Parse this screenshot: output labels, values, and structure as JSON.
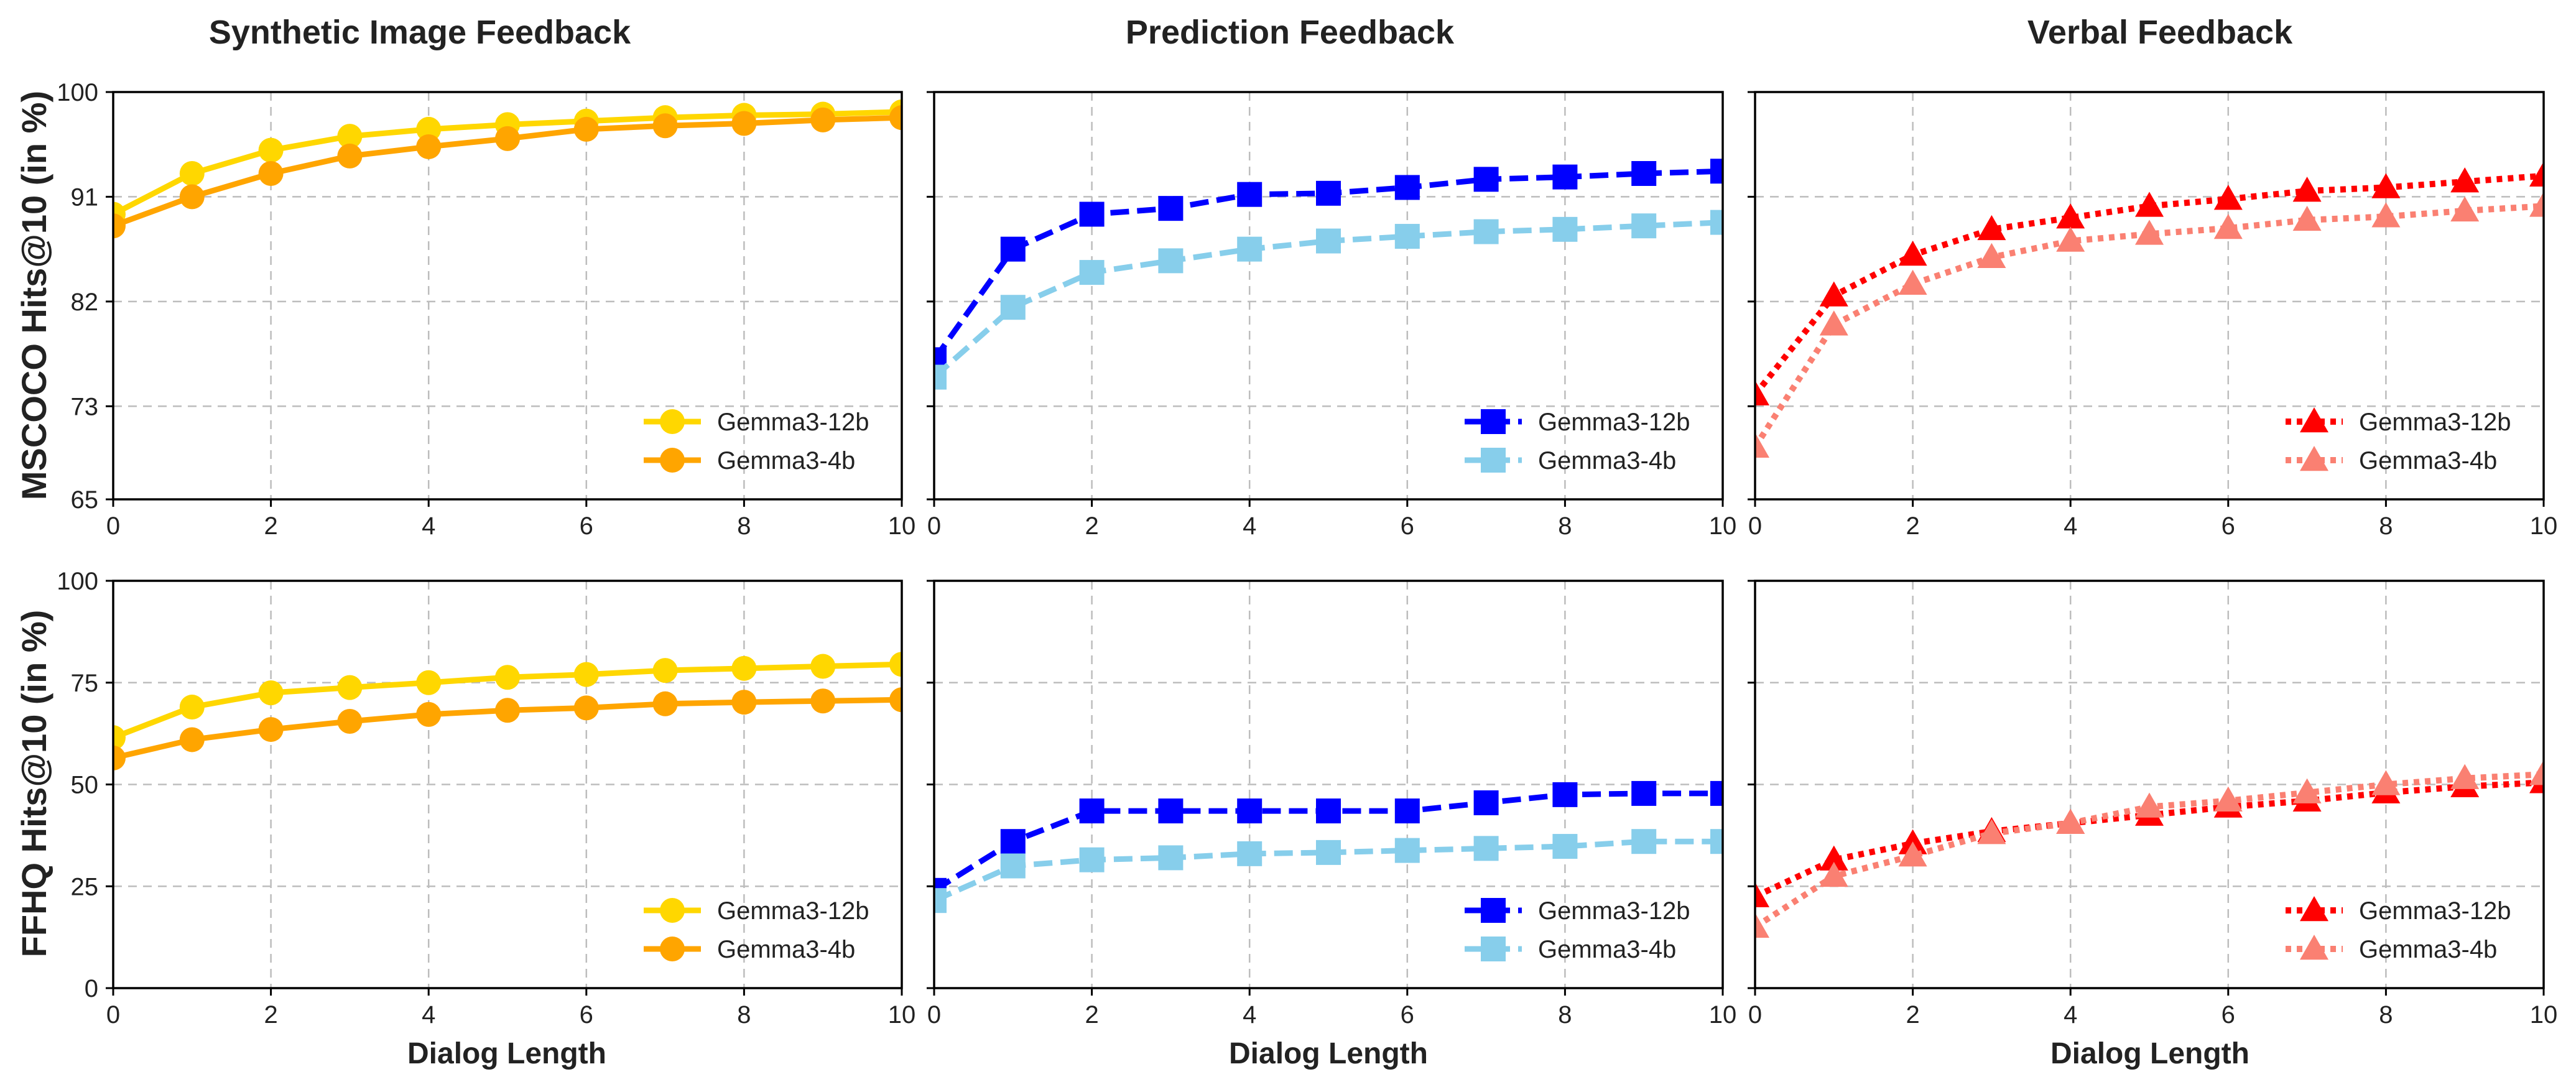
{
  "figure": {
    "column_titles": [
      "Synthetic Image Feedback",
      "Prediction Feedback",
      "Verbal Feedback"
    ],
    "row_labels": [
      "MSCOCO Hits@10 (in %)",
      "FFHQ Hits@10 (in %)"
    ],
    "xlabel": "Dialog Length"
  },
  "chart_data": [
    {
      "id": "mscoco-synthetic",
      "type": "line",
      "row": 0,
      "col": 0,
      "title": "Synthetic Image Feedback",
      "xlabel": "",
      "ylabel": "MSCOCO Hits@10 (in %)",
      "xlim": [
        0,
        10
      ],
      "ylim": [
        65,
        100
      ],
      "xticks": [
        0,
        2,
        4,
        6,
        8,
        10
      ],
      "yticks": [
        65,
        73,
        82,
        91,
        100
      ],
      "grid": true,
      "legend_position": "lower-right",
      "x": [
        0,
        1,
        2,
        3,
        4,
        5,
        6,
        7,
        8,
        9,
        10
      ],
      "series": [
        {
          "name": "Gemma3-12b",
          "color": "#FFD700",
          "marker": "circle",
          "linestyle": "solid",
          "values": [
            89.5,
            93.0,
            95.0,
            96.2,
            96.8,
            97.2,
            97.5,
            97.8,
            98.0,
            98.1,
            98.3
          ]
        },
        {
          "name": "Gemma3-4b",
          "color": "#FFA500",
          "marker": "circle",
          "linestyle": "solid",
          "values": [
            88.5,
            91.0,
            93.0,
            94.5,
            95.3,
            96.0,
            96.8,
            97.1,
            97.3,
            97.6,
            97.8
          ]
        }
      ]
    },
    {
      "id": "mscoco-prediction",
      "type": "line",
      "row": 0,
      "col": 1,
      "title": "Prediction Feedback",
      "xlabel": "",
      "ylabel": "",
      "xlim": [
        0,
        10
      ],
      "ylim": [
        65,
        100
      ],
      "xticks": [
        0,
        2,
        4,
        6,
        8,
        10
      ],
      "yticks": [
        65,
        73,
        82,
        91,
        100
      ],
      "grid": true,
      "legend_position": "lower-right",
      "x": [
        0,
        1,
        2,
        3,
        4,
        5,
        6,
        7,
        8,
        9,
        10
      ],
      "series": [
        {
          "name": "Gemma3-12b",
          "color": "#0000FF",
          "marker": "square",
          "linestyle": "dashed",
          "values": [
            77.0,
            86.5,
            89.5,
            90.0,
            91.2,
            91.3,
            91.8,
            92.5,
            92.7,
            93.0,
            93.2
          ]
        },
        {
          "name": "Gemma3-4b",
          "color": "#87CEEB",
          "marker": "square",
          "linestyle": "dashed",
          "values": [
            75.5,
            81.5,
            84.5,
            85.5,
            86.5,
            87.2,
            87.6,
            88.0,
            88.2,
            88.5,
            88.8
          ]
        }
      ]
    },
    {
      "id": "mscoco-verbal",
      "type": "line",
      "row": 0,
      "col": 2,
      "title": "Verbal Feedback",
      "xlabel": "",
      "ylabel": "",
      "xlim": [
        0,
        10
      ],
      "ylim": [
        65,
        100
      ],
      "xticks": [
        0,
        2,
        4,
        6,
        8,
        10
      ],
      "yticks": [
        65,
        73,
        82,
        91,
        100
      ],
      "grid": true,
      "legend_position": "lower-right",
      "x": [
        0,
        1,
        2,
        3,
        4,
        5,
        6,
        7,
        8,
        9,
        10
      ],
      "series": [
        {
          "name": "Gemma3-12b",
          "color": "#FF0000",
          "marker": "triangle",
          "linestyle": "dotted",
          "values": [
            74.0,
            82.5,
            86.0,
            88.2,
            89.2,
            90.2,
            90.8,
            91.5,
            91.8,
            92.3,
            92.8
          ]
        },
        {
          "name": "Gemma3-4b",
          "color": "#FA8072",
          "marker": "triangle",
          "linestyle": "dotted",
          "values": [
            69.5,
            80.0,
            83.5,
            85.8,
            87.2,
            87.8,
            88.3,
            89.0,
            89.3,
            89.8,
            90.2
          ]
        }
      ]
    },
    {
      "id": "ffhq-synthetic",
      "type": "line",
      "row": 1,
      "col": 0,
      "title": "",
      "xlabel": "Dialog Length",
      "ylabel": "FFHQ Hits@10 (in %)",
      "xlim": [
        0,
        10
      ],
      "ylim": [
        0,
        100
      ],
      "xticks": [
        0,
        2,
        4,
        6,
        8,
        10
      ],
      "yticks": [
        0,
        25,
        50,
        75,
        100
      ],
      "grid": true,
      "legend_position": "lower-right",
      "x": [
        0,
        1,
        2,
        3,
        4,
        5,
        6,
        7,
        8,
        9,
        10
      ],
      "series": [
        {
          "name": "Gemma3-12b",
          "color": "#FFD700",
          "marker": "circle",
          "linestyle": "solid",
          "values": [
            61.5,
            69.0,
            72.5,
            73.8,
            75.0,
            76.3,
            77.0,
            78.0,
            78.5,
            79.0,
            79.5
          ]
        },
        {
          "name": "Gemma3-4b",
          "color": "#FFA500",
          "marker": "circle",
          "linestyle": "solid",
          "values": [
            56.5,
            61.0,
            63.5,
            65.5,
            67.2,
            68.2,
            68.8,
            69.8,
            70.2,
            70.5,
            70.8
          ]
        }
      ]
    },
    {
      "id": "ffhq-prediction",
      "type": "line",
      "row": 1,
      "col": 1,
      "title": "",
      "xlabel": "Dialog Length",
      "ylabel": "",
      "xlim": [
        0,
        10
      ],
      "ylim": [
        0,
        100
      ],
      "xticks": [
        0,
        2,
        4,
        6,
        8,
        10
      ],
      "yticks": [
        0,
        25,
        50,
        75,
        100
      ],
      "grid": true,
      "legend_position": "lower-right",
      "x": [
        0,
        1,
        2,
        3,
        4,
        5,
        6,
        7,
        8,
        9,
        10
      ],
      "series": [
        {
          "name": "Gemma3-12b",
          "color": "#0000FF",
          "marker": "square",
          "linestyle": "dashed",
          "values": [
            24.0,
            36.0,
            43.5,
            43.5,
            43.5,
            43.5,
            43.5,
            45.5,
            47.5,
            47.8,
            47.8
          ]
        },
        {
          "name": "Gemma3-4b",
          "color": "#87CEEB",
          "marker": "square",
          "linestyle": "dashed",
          "values": [
            21.5,
            30.0,
            31.5,
            32.0,
            33.0,
            33.3,
            33.8,
            34.3,
            34.8,
            36.0,
            36.0
          ]
        }
      ]
    },
    {
      "id": "ffhq-verbal",
      "type": "line",
      "row": 1,
      "col": 2,
      "title": "",
      "xlabel": "Dialog Length",
      "ylabel": "",
      "xlim": [
        0,
        10
      ],
      "ylim": [
        0,
        100
      ],
      "xticks": [
        0,
        2,
        4,
        6,
        8,
        10
      ],
      "yticks": [
        0,
        25,
        50,
        75,
        100
      ],
      "grid": true,
      "legend_position": "lower-right",
      "x": [
        0,
        1,
        2,
        3,
        4,
        5,
        6,
        7,
        8,
        9,
        10
      ],
      "series": [
        {
          "name": "Gemma3-12b",
          "color": "#FF0000",
          "marker": "triangle",
          "linestyle": "dotted",
          "values": [
            22.5,
            31.5,
            35.5,
            38.5,
            40.5,
            42.5,
            44.5,
            46.0,
            48.0,
            49.5,
            50.5
          ]
        },
        {
          "name": "Gemma3-4b",
          "color": "#FA8072",
          "marker": "triangle",
          "linestyle": "dotted",
          "values": [
            15.0,
            27.5,
            32.5,
            38.0,
            40.5,
            44.5,
            46.0,
            48.0,
            50.0,
            51.5,
            52.5
          ]
        }
      ]
    }
  ]
}
